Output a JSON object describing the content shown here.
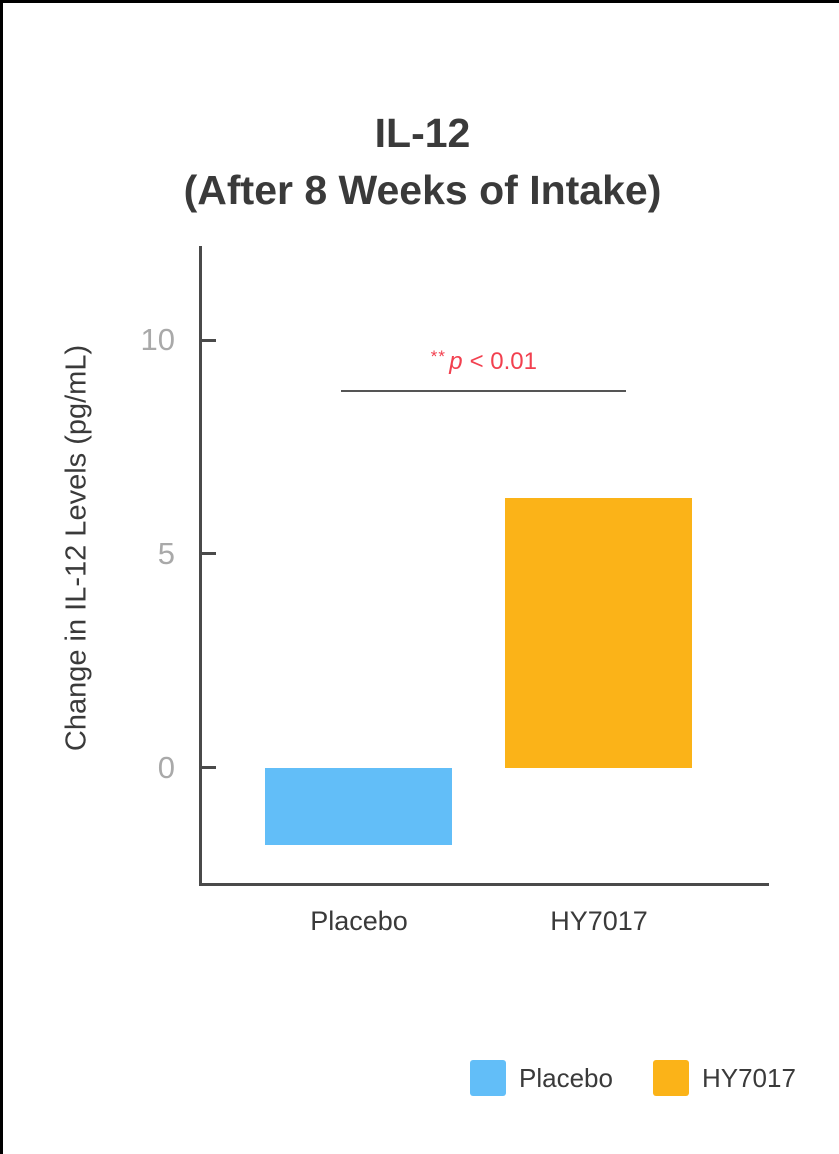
{
  "title": {
    "line1": "IL-12",
    "line2": "(After 8 Weeks of Intake)"
  },
  "significance": {
    "stars": "**",
    "p_symbol": "p",
    "comparison": "< 0.01",
    "color": "#f2404f"
  },
  "chart_data": {
    "type": "bar",
    "title": "IL-12 (After 8 Weeks of Intake)",
    "categories": [
      "Placebo",
      "HY7017"
    ],
    "values": [
      -1.8,
      6.3
    ],
    "bar_colors": [
      "#62bef8",
      "#fbb318"
    ],
    "xlabel": "",
    "ylabel": "Change in IL-12 Levels (pg/mL)",
    "yticks": [
      0,
      5,
      10
    ],
    "ylim": [
      -2.7,
      12.2
    ],
    "grid": false,
    "legend_position": "bottom-right",
    "annotation": {
      "text": "** p < 0.01",
      "applies_between": [
        "Placebo",
        "HY7017"
      ]
    }
  },
  "legend": {
    "items": [
      {
        "label": "Placebo",
        "color": "#62bef8"
      },
      {
        "label": "HY7017",
        "color": "#fbb318"
      }
    ]
  },
  "colors": {
    "text_dark": "#3a3a3a",
    "tick_label": "#a9a9a9",
    "axis_line": "#4a4a4a",
    "annotation_red": "#f2404f",
    "placebo_blue": "#62bef8",
    "hy7017_orange": "#fbb318",
    "frame_border": "#000000"
  }
}
